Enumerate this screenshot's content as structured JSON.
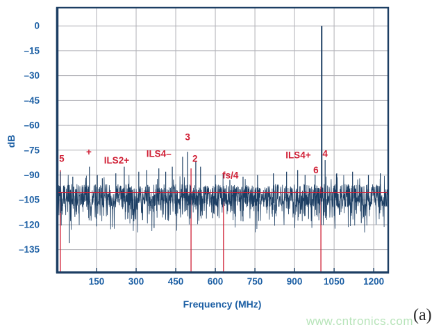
{
  "figure": {
    "watermark_text": "www.cntronics.com",
    "panel_label": "(a)"
  },
  "chart_data": {
    "type": "line",
    "title": "",
    "xlabel": "Frequency (MHz)",
    "ylabel": "dB",
    "xlim_mhz": [
      0,
      1255
    ],
    "ylim_db": [
      -149,
      11
    ],
    "x_ticks_mhz": [
      150,
      300,
      450,
      600,
      750,
      900,
      1050,
      1200
    ],
    "y_ticks_db": [
      0,
      -15,
      -30,
      -45,
      -60,
      -75,
      -90,
      -105,
      -120,
      -135
    ],
    "grid": true,
    "legend": "none",
    "noise_floor": {
      "mean_db": -103,
      "solid_band_db": [
        -110,
        -100
      ],
      "hair_band_db": [
        -120,
        -89
      ]
    },
    "reference_line_db": -100.5,
    "marker_lines": [
      {
        "mhz": 13,
        "top_db": -87,
        "relates_to": "5"
      },
      {
        "mhz": 508,
        "top_db": -86,
        "relates_to": "2"
      },
      {
        "mhz": 631,
        "top_db": -99,
        "relates_to": "fs/4"
      },
      {
        "mhz": 1000,
        "top_db": -97,
        "relates_to": "4"
      }
    ],
    "spurs": [
      {
        "mhz": 2,
        "db": -61
      },
      {
        "mhz": 13,
        "db": -88
      },
      {
        "mhz": 60,
        "db": -91
      },
      {
        "mhz": 123,
        "db": -85
      },
      {
        "mhz": 153,
        "db": -90
      },
      {
        "mhz": 172,
        "db": -92
      },
      {
        "mhz": 223,
        "db": -89
      },
      {
        "mhz": 255,
        "db": -85
      },
      {
        "mhz": 310,
        "db": -88
      },
      {
        "mhz": 340,
        "db": -87
      },
      {
        "mhz": 386,
        "db": -86
      },
      {
        "mhz": 412,
        "db": -88
      },
      {
        "mhz": 437,
        "db": -85
      },
      {
        "mhz": 476,
        "db": -79
      },
      {
        "mhz": 495,
        "db": -76
      },
      {
        "mhz": 526,
        "db": -82
      },
      {
        "mhz": 544,
        "db": -85
      },
      {
        "mhz": 600,
        "db": -90
      },
      {
        "mhz": 655,
        "db": -93
      },
      {
        "mhz": 705,
        "db": -91
      },
      {
        "mhz": 760,
        "db": -90
      },
      {
        "mhz": 820,
        "db": -89
      },
      {
        "mhz": 870,
        "db": -88
      },
      {
        "mhz": 912,
        "db": -87
      },
      {
        "mhz": 940,
        "db": -90
      },
      {
        "mhz": 978,
        "db": -90
      },
      {
        "mhz": 1003,
        "db": 0
      },
      {
        "mhz": 1016,
        "db": -81
      },
      {
        "mhz": 1060,
        "db": -89
      },
      {
        "mhz": 1120,
        "db": -88
      },
      {
        "mhz": 1180,
        "db": -90
      },
      {
        "mhz": 1225,
        "db": -89
      }
    ],
    "dips": [
      {
        "mhz": 47,
        "db": -131
      },
      {
        "mhz": 150,
        "db": -121
      },
      {
        "mhz": 368,
        "db": -122
      },
      {
        "mhz": 590,
        "db": -116
      },
      {
        "mhz": 705,
        "db": -118
      },
      {
        "mhz": 1153,
        "db": -119
      }
    ],
    "annotations": [
      {
        "text": "5",
        "mhz": 18,
        "db": -82
      },
      {
        "text": "+",
        "mhz": 121,
        "db": -78
      },
      {
        "text": "ILS2+",
        "mhz": 226,
        "db": -83
      },
      {
        "text": "ILS4–",
        "mhz": 386,
        "db": -79
      },
      {
        "text": "3",
        "mhz": 495,
        "db": -69
      },
      {
        "text": "2",
        "mhz": 523,
        "db": -82
      },
      {
        "text": "fs/4",
        "mhz": 657,
        "db": -92
      },
      {
        "text": "ILS4+",
        "mhz": 914,
        "db": -80
      },
      {
        "text": "6",
        "mhz": 981,
        "db": -89
      },
      {
        "text": "4",
        "mhz": 1016,
        "db": -79
      }
    ],
    "colors": {
      "trace": "#1c3e63",
      "axis_border": "#1c3e63",
      "grid": "#b0b0b6",
      "tick_text": "#1c5fa4",
      "annotation_red": "#d01f35",
      "watermark_green": "#b4e3b6",
      "panel_label_color": "#2a2a2a",
      "background": "#ffffff"
    }
  }
}
